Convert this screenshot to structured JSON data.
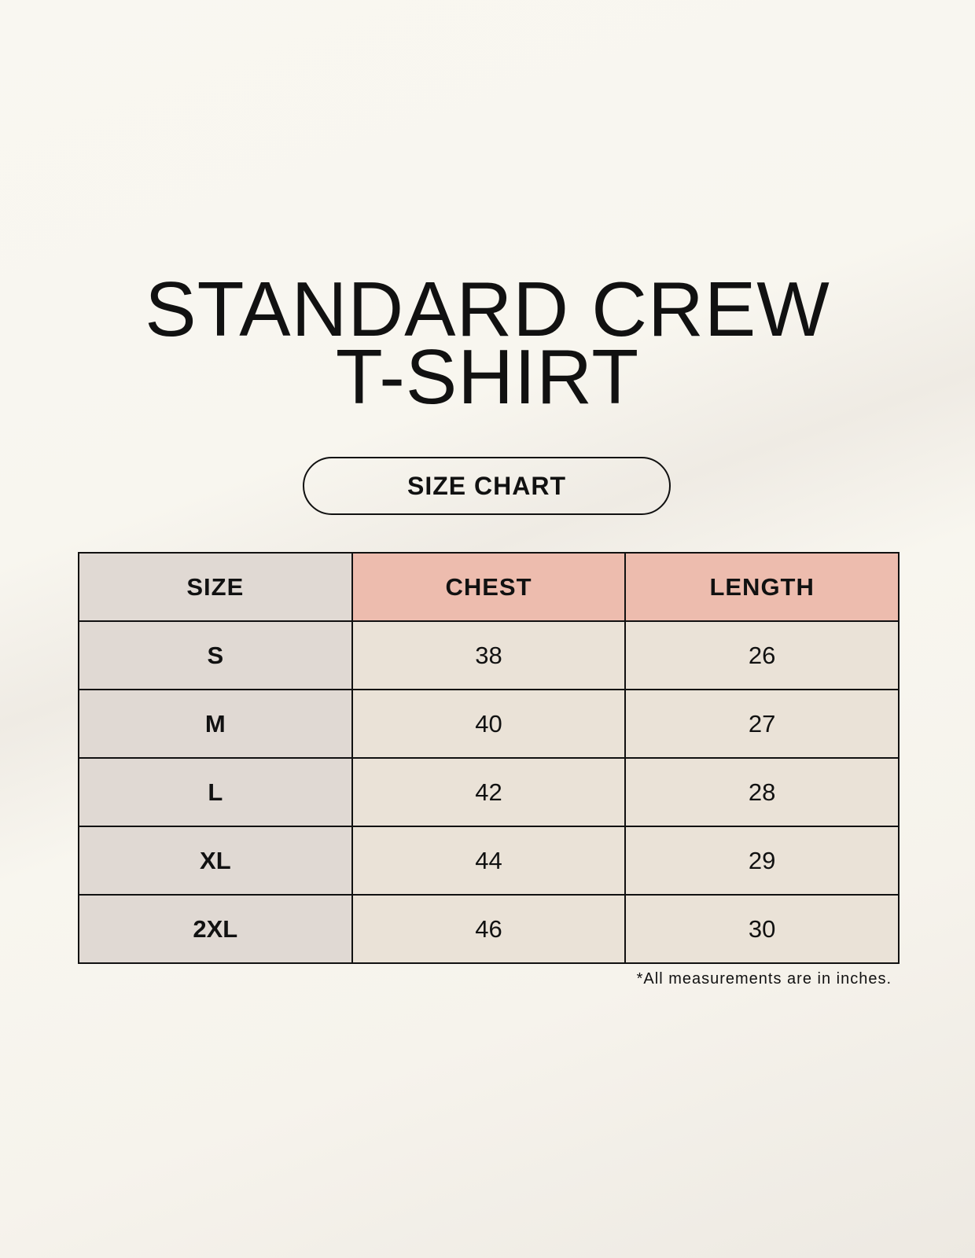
{
  "title": {
    "line1": "STANDARD CREW",
    "line2": "T-SHIRT"
  },
  "badge": "SIZE CHART",
  "table": {
    "headers": [
      "SIZE",
      "CHEST",
      "LENGTH"
    ],
    "rows": [
      [
        "S",
        "38",
        "26"
      ],
      [
        "M",
        "40",
        "27"
      ],
      [
        "L",
        "42",
        "28"
      ],
      [
        "XL",
        "44",
        "29"
      ],
      [
        "2XL",
        "46",
        "30"
      ]
    ]
  },
  "footnote": "*All measurements are in inches.",
  "colors": {
    "size_column": "#e0d9d3",
    "header_accent": "#edbcae",
    "value_cells": "#eae2d7",
    "background": "#f8f6f0"
  }
}
